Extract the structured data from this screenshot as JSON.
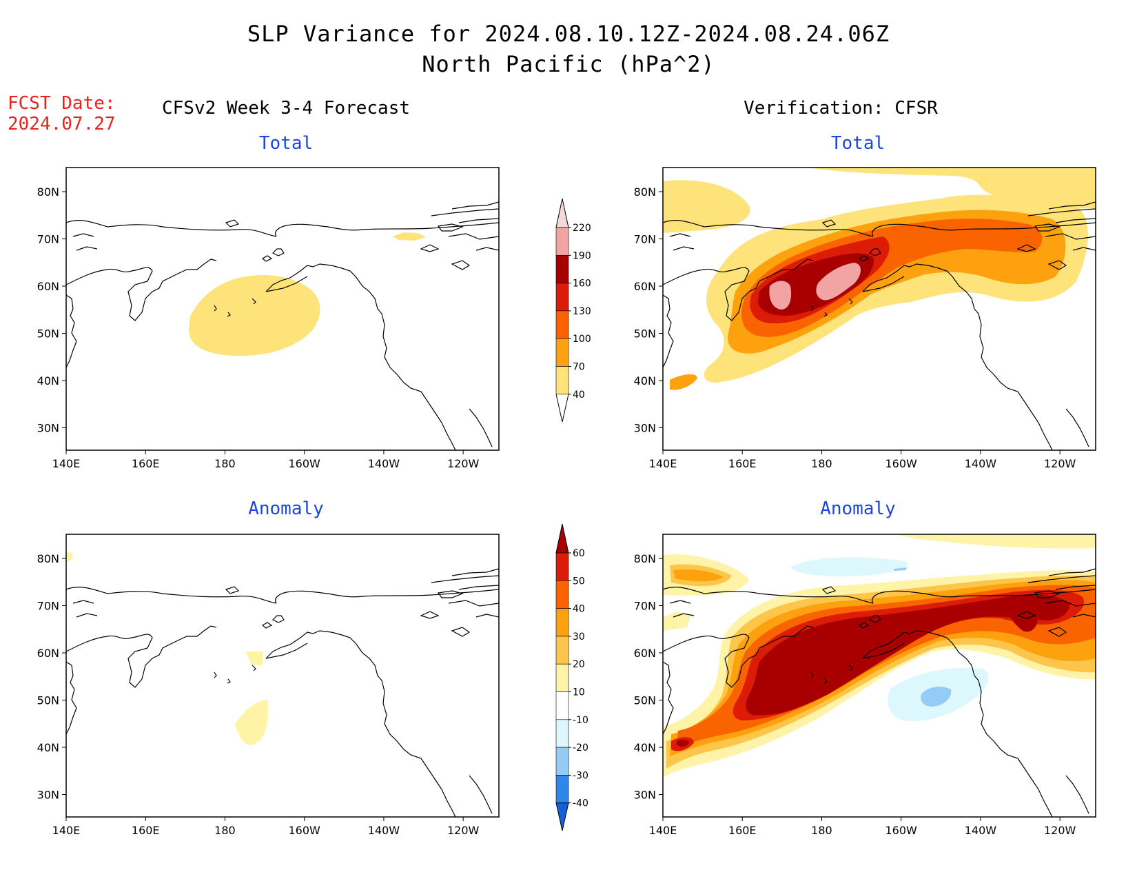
{
  "title": {
    "line1": "SLP Variance for 2024.08.10.12Z-2024.08.24.06Z",
    "line2": "North Pacific (hPa^2)"
  },
  "fcst": {
    "label": "FCST Date:",
    "date": "2024.07.27"
  },
  "columns": {
    "left": "CFSv2 Week 3-4 Forecast",
    "right": "Verification: CFSR"
  },
  "panels": {
    "top_left": "Total",
    "top_right": "Total",
    "bottom_left": "Anomaly",
    "bottom_right": "Anomaly"
  },
  "axes": {
    "lon_ticks": [
      "140E",
      "160E",
      "180",
      "160W",
      "140W",
      "120W"
    ],
    "lat_ticks": [
      "80N",
      "70N",
      "60N",
      "50N",
      "40N",
      "30N"
    ]
  },
  "colorbars": {
    "total": {
      "levels": [
        "220",
        "190",
        "160",
        "130",
        "100",
        "70",
        "40"
      ],
      "colors": [
        "#f5d9d9",
        "#f2a3a3",
        "#a80000",
        "#dd1c08",
        "#fa6400",
        "#fda10f",
        "#fde37a"
      ]
    },
    "anomaly": {
      "levels": [
        "60",
        "50",
        "40",
        "30",
        "20",
        "10",
        "-10",
        "-20",
        "-30",
        "-40"
      ],
      "colors": [
        "#a80000",
        "#dd1c08",
        "#fa6400",
        "#fda10f",
        "#fdc64a",
        "#fff3a8",
        "#ffffff",
        "#dcf8fc",
        "#95ccf7",
        "#2f87ec",
        "#1560d6"
      ]
    }
  },
  "colors": {
    "yellow": "#fde37a",
    "orange_light": "#fdc64a",
    "orange": "#fda10f",
    "orange_dark": "#fa6400",
    "red": "#dd1c08",
    "dark_red": "#a80000",
    "pink": "#f2a3a3",
    "light_pink": "#f5d9d9",
    "pale_yellow": "#fff3a8",
    "light_blue": "#dcf8fc",
    "blue": "#95ccf7",
    "title_blue": "#1b46e0",
    "fcst_red": "#e8231e"
  }
}
